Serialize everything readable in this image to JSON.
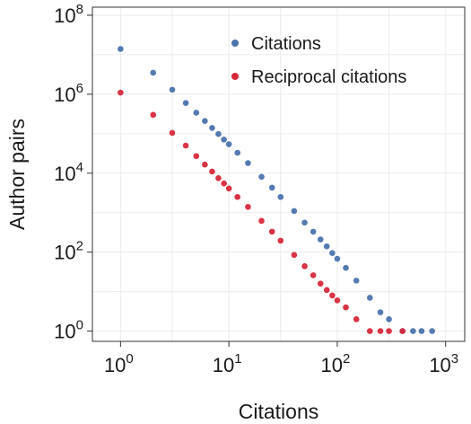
{
  "chart_data": {
    "type": "scatter",
    "xlabel": "Citations",
    "ylabel": "Author pairs",
    "xscale": "log",
    "yscale": "log",
    "xlim": [
      0.55,
      1500
    ],
    "ylim": [
      0.55,
      160000000
    ],
    "grid": true,
    "legend_position": "top-right",
    "x_ticks": [
      {
        "value": 1,
        "base": "10",
        "exp": "0"
      },
      {
        "value": 10,
        "base": "10",
        "exp": "1"
      },
      {
        "value": 100,
        "base": "10",
        "exp": "2"
      },
      {
        "value": 1000,
        "base": "10",
        "exp": "3"
      }
    ],
    "y_ticks": [
      {
        "value": 1,
        "base": "10",
        "exp": "0"
      },
      {
        "value": 100,
        "base": "10",
        "exp": "2"
      },
      {
        "value": 10000,
        "base": "10",
        "exp": "4"
      },
      {
        "value": 1000000,
        "base": "10",
        "exp": "6"
      },
      {
        "value": 100000000,
        "base": "10",
        "exp": "8"
      }
    ],
    "series": [
      {
        "name": "Citations",
        "color": "#4a74ad",
        "points": [
          [
            1,
            14000000
          ],
          [
            2,
            3500000
          ],
          [
            3,
            1300000
          ],
          [
            4,
            600000
          ],
          [
            5,
            340000
          ],
          [
            6,
            210000
          ],
          [
            7,
            140000
          ],
          [
            8,
            98000
          ],
          [
            9,
            71000
          ],
          [
            10,
            54000
          ],
          [
            12,
            33000
          ],
          [
            15,
            18000
          ],
          [
            20,
            8100
          ],
          [
            25,
            4300
          ],
          [
            30,
            2500
          ],
          [
            40,
            1100
          ],
          [
            50,
            560
          ],
          [
            60,
            330
          ],
          [
            70,
            210
          ],
          [
            80,
            140
          ],
          [
            90,
            95
          ],
          [
            100,
            68
          ],
          [
            120,
            40
          ],
          [
            150,
            19
          ],
          [
            200,
            7
          ],
          [
            250,
            3
          ],
          [
            300,
            2
          ],
          [
            400,
            1
          ],
          [
            500,
            1
          ],
          [
            600,
            1
          ],
          [
            750,
            1
          ]
        ]
      },
      {
        "name": "Reciprocal citations",
        "color": "#d7283a",
        "points": [
          [
            1,
            1100000
          ],
          [
            2,
            300000
          ],
          [
            3,
            105000
          ],
          [
            4,
            50000
          ],
          [
            5,
            27000
          ],
          [
            6,
            16500
          ],
          [
            7,
            11000
          ],
          [
            8,
            7500
          ],
          [
            9,
            5500
          ],
          [
            10,
            4100
          ],
          [
            12,
            2500
          ],
          [
            15,
            1400
          ],
          [
            20,
            620
          ],
          [
            25,
            330
          ],
          [
            30,
            195
          ],
          [
            40,
            85
          ],
          [
            50,
            44
          ],
          [
            60,
            26
          ],
          [
            70,
            16
          ],
          [
            80,
            11
          ],
          [
            90,
            8
          ],
          [
            100,
            6
          ],
          [
            120,
            4
          ],
          [
            150,
            2
          ],
          [
            200,
            1
          ],
          [
            250,
            1
          ],
          [
            300,
            1
          ],
          [
            400,
            1
          ]
        ]
      }
    ]
  }
}
